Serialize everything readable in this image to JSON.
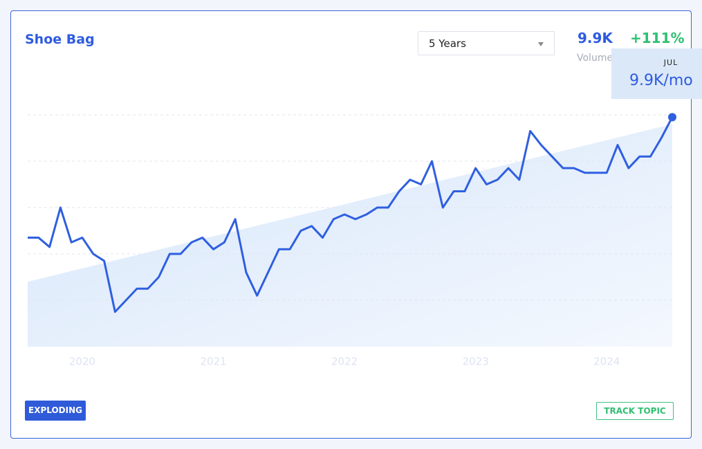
{
  "header": {
    "title": "Shoe Bag",
    "period": "5 Years",
    "volume": "9.9K",
    "volume_label": "Volume",
    "growth": "+111%"
  },
  "tooltip": {
    "month": "JUL",
    "value": "9.9K/mo"
  },
  "footer": {
    "badge": "EXPLODING",
    "button": "TRACK TOPIC"
  },
  "chart_data": {
    "type": "line",
    "categories": [
      null,
      null,
      null,
      null,
      null,
      "2020",
      null,
      null,
      null,
      null,
      null,
      null,
      null,
      null,
      null,
      null,
      null,
      "2021",
      null,
      null,
      null,
      null,
      null,
      null,
      null,
      null,
      null,
      null,
      null,
      "2022",
      null,
      null,
      null,
      null,
      null,
      null,
      null,
      null,
      null,
      null,
      null,
      "2023",
      null,
      null,
      null,
      null,
      null,
      null,
      null,
      null,
      null,
      null,
      null,
      "2024",
      null,
      null,
      null,
      null,
      null,
      null
    ],
    "values": [
      4.7,
      4.7,
      4.3,
      6.0,
      4.5,
      4.7,
      4.0,
      3.7,
      1.5,
      2.0,
      2.5,
      2.5,
      3.0,
      4.0,
      4.0,
      4.5,
      4.7,
      4.2,
      4.5,
      5.5,
      3.2,
      2.2,
      3.2,
      4.2,
      4.2,
      5.0,
      5.2,
      4.7,
      5.5,
      5.7,
      5.5,
      5.7,
      6.0,
      6.0,
      6.7,
      7.2,
      7.0,
      8.0,
      6.0,
      6.7,
      6.7,
      7.7,
      7.0,
      7.2,
      7.7,
      7.2,
      9.3,
      8.7,
      8.2,
      7.7,
      7.7,
      7.5,
      7.5,
      7.5,
      8.7,
      7.7,
      8.2,
      8.2,
      9.0,
      9.9
    ],
    "trend": [
      2.8,
      9.6
    ],
    "color": "#2f5fe0",
    "area_color": "#d6e6fa",
    "ylim": [
      0,
      10
    ],
    "yticks": [
      2,
      4,
      6,
      8,
      10
    ],
    "grid": true
  }
}
